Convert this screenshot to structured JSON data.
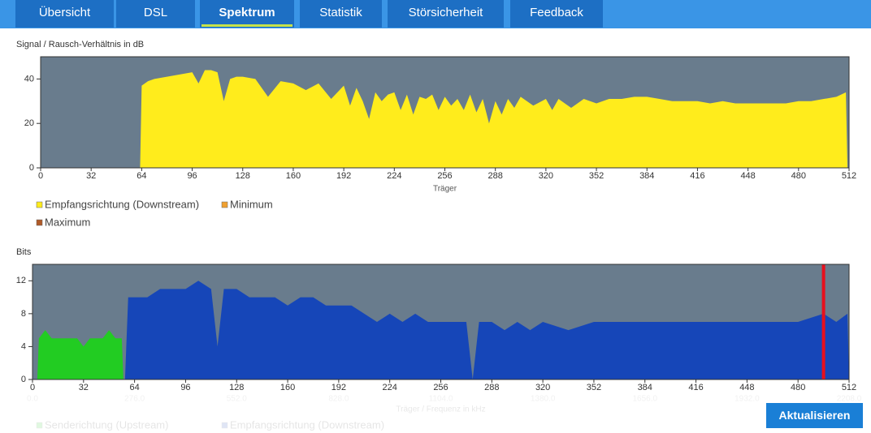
{
  "tabs": [
    "Übersicht",
    "DSL",
    "Spektrum",
    "Statistik",
    "Störsicherheit",
    "Feedback"
  ],
  "active_tab": 2,
  "button": "Aktualisieren",
  "chart_data": [
    {
      "type": "area",
      "title": "Signal / Rausch-Verhältnis in dB",
      "xlabel": "Träger",
      "xlim": [
        0,
        512
      ],
      "ylim": [
        0,
        50
      ],
      "xticks": [
        0,
        32,
        64,
        96,
        128,
        160,
        192,
        224,
        256,
        288,
        320,
        352,
        384,
        416,
        448,
        480,
        512
      ],
      "yticks": [
        0,
        20,
        40
      ],
      "background": "#697c8d",
      "series": [
        {
          "name": "Empfangsrichtung (Downstream)",
          "color": "#ffec1c",
          "x": [
            0,
            62,
            63,
            64,
            68,
            72,
            80,
            88,
            96,
            100,
            104,
            108,
            112,
            116,
            120,
            124,
            128,
            136,
            144,
            152,
            160,
            168,
            176,
            184,
            192,
            196,
            200,
            204,
            208,
            212,
            216,
            220,
            224,
            228,
            232,
            236,
            240,
            244,
            248,
            252,
            256,
            260,
            264,
            268,
            272,
            276,
            280,
            284,
            288,
            292,
            296,
            300,
            304,
            312,
            320,
            324,
            328,
            336,
            344,
            352,
            360,
            368,
            376,
            384,
            392,
            400,
            408,
            416,
            424,
            432,
            440,
            448,
            456,
            464,
            472,
            480,
            488,
            496,
            504,
            510,
            511
          ],
          "values": [
            0,
            0,
            0,
            37,
            39,
            40,
            41,
            42,
            43,
            38,
            44,
            44,
            43,
            30,
            40,
            41,
            41,
            40,
            32,
            39,
            38,
            35,
            38,
            31,
            37,
            28,
            36,
            30,
            22,
            34,
            30,
            33,
            34,
            26,
            33,
            24,
            32,
            31,
            33,
            26,
            32,
            28,
            31,
            26,
            33,
            25,
            31,
            20,
            30,
            24,
            31,
            27,
            32,
            28,
            31,
            26,
            31,
            27,
            31,
            29,
            31,
            31,
            32,
            32,
            31,
            30,
            30,
            30,
            29,
            30,
            29,
            29,
            29,
            29,
            29,
            30,
            30,
            31,
            32,
            34,
            0
          ]
        },
        {
          "name": "Minimum",
          "color": "#f0a030"
        },
        {
          "name": "Maximum",
          "color": "#b05a28"
        }
      ]
    },
    {
      "type": "area",
      "title": "Bits",
      "xlabel": "Träger / Frequenz in kHz",
      "xlim": [
        0,
        512
      ],
      "ylim": [
        0,
        14
      ],
      "xticks": [
        0,
        32,
        64,
        96,
        128,
        160,
        192,
        224,
        256,
        288,
        320,
        352,
        384,
        416,
        448,
        480,
        512
      ],
      "yticks": [
        0,
        4,
        8,
        12
      ],
      "x2lim": [
        0,
        2208
      ],
      "x2ticks": [
        {
          "value": 0,
          "label": "0.0"
        },
        {
          "value": 276,
          "label": "276.0"
        },
        {
          "value": 552,
          "label": "552.0"
        },
        {
          "value": 828,
          "label": "828.0"
        },
        {
          "value": 1104,
          "label": "1104.0"
        },
        {
          "value": 1380,
          "label": "1380.0"
        },
        {
          "value": 1656,
          "label": "1656.0"
        },
        {
          "value": 1932,
          "label": "1932.0"
        },
        {
          "value": 2208,
          "label": "2208.0"
        }
      ],
      "background": "#697c8d",
      "markers": [
        {
          "x": 496,
          "color": "#e8101c"
        }
      ],
      "series": [
        {
          "name": "Senderichtung (Upstream)",
          "color": "#22cc22",
          "x": [
            3,
            4,
            8,
            12,
            16,
            20,
            24,
            28,
            32,
            36,
            40,
            44,
            48,
            52,
            56,
            57
          ],
          "values": [
            0,
            5,
            6,
            5,
            5,
            5,
            5,
            5,
            4,
            5,
            5,
            5,
            6,
            5,
            5,
            0
          ]
        },
        {
          "name": "Empfangsrichtung (Downstream)",
          "color": "#1646b8",
          "x": [
            58,
            60,
            64,
            72,
            80,
            88,
            96,
            104,
            112,
            116,
            120,
            128,
            136,
            144,
            152,
            160,
            168,
            176,
            184,
            192,
            200,
            208,
            216,
            224,
            232,
            240,
            248,
            256,
            264,
            272,
            276,
            280,
            288,
            296,
            304,
            312,
            320,
            336,
            352,
            368,
            384,
            400,
            416,
            432,
            448,
            464,
            480,
            496,
            504,
            511,
            512
          ],
          "values": [
            0,
            10,
            10,
            10,
            11,
            11,
            11,
            12,
            11,
            4,
            11,
            11,
            10,
            10,
            10,
            9,
            10,
            10,
            9,
            9,
            9,
            8,
            7,
            8,
            7,
            8,
            7,
            7,
            7,
            7,
            0,
            7,
            7,
            6,
            7,
            6,
            7,
            6,
            7,
            7,
            7,
            7,
            7,
            7,
            7,
            7,
            7,
            8,
            7,
            8,
            0
          ]
        }
      ]
    }
  ]
}
